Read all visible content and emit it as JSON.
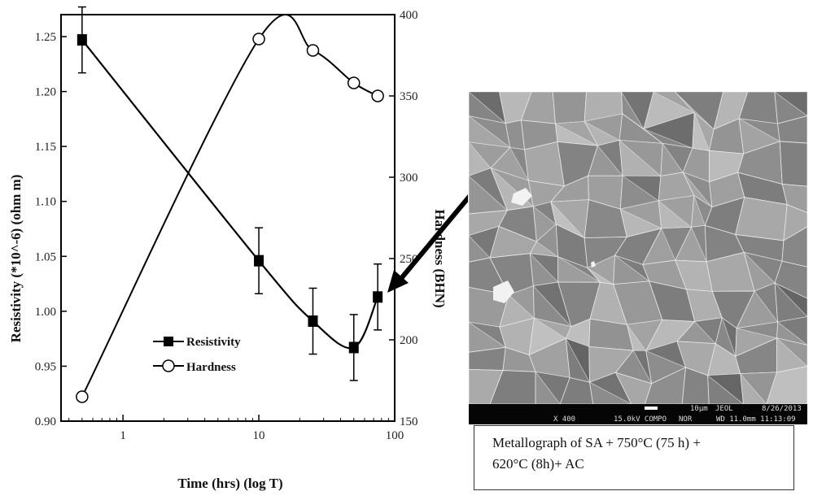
{
  "chart_data": {
    "type": "line",
    "xlabel": "Time (hrs) (log T)",
    "x_scale": "log",
    "xlim": [
      0.35,
      100
    ],
    "x_ticks": [
      "1",
      "10",
      "100"
    ],
    "ylabel_left": "Resistivity (*10^-6) (ohm m)",
    "ylim_left": [
      0.9,
      1.27
    ],
    "y_ticks_left": [
      "0.90",
      "0.95",
      "1.00",
      "1.05",
      "1.10",
      "1.15",
      "1.20",
      "1.25"
    ],
    "ylabel_right": "Hardness (BHN)",
    "ylim_right": [
      150,
      400
    ],
    "y_ticks_right": [
      "150",
      "200",
      "250",
      "300",
      "350",
      "400"
    ],
    "legend_position": "bottom-center",
    "series": [
      {
        "name": "Resistivity",
        "axis": "left",
        "marker": "filled-square",
        "x": [
          0.5,
          10,
          25,
          50,
          75
        ],
        "y": [
          1.247,
          1.046,
          0.991,
          0.967,
          1.013
        ],
        "error": [
          0.03,
          0.03,
          0.03,
          0.03,
          0.03
        ]
      },
      {
        "name": "Hardness",
        "axis": "right",
        "marker": "open-circle",
        "x": [
          0.5,
          10,
          25,
          50,
          75
        ],
        "y": [
          165,
          385,
          378,
          358,
          350
        ]
      }
    ]
  },
  "micrograph": {
    "scale_label": "10µm",
    "instrument": "JEOL",
    "date": "8/26/2013",
    "magnification": "X 400",
    "voltage": "15.0kV COMPO",
    "mode": "NOR",
    "working_distance": "WD 11.0mm 11:13:09"
  },
  "caption": {
    "line1": "Metallograph of SA + 750°C (75 h) +",
    "line2": "620°C (8h)+ AC"
  }
}
